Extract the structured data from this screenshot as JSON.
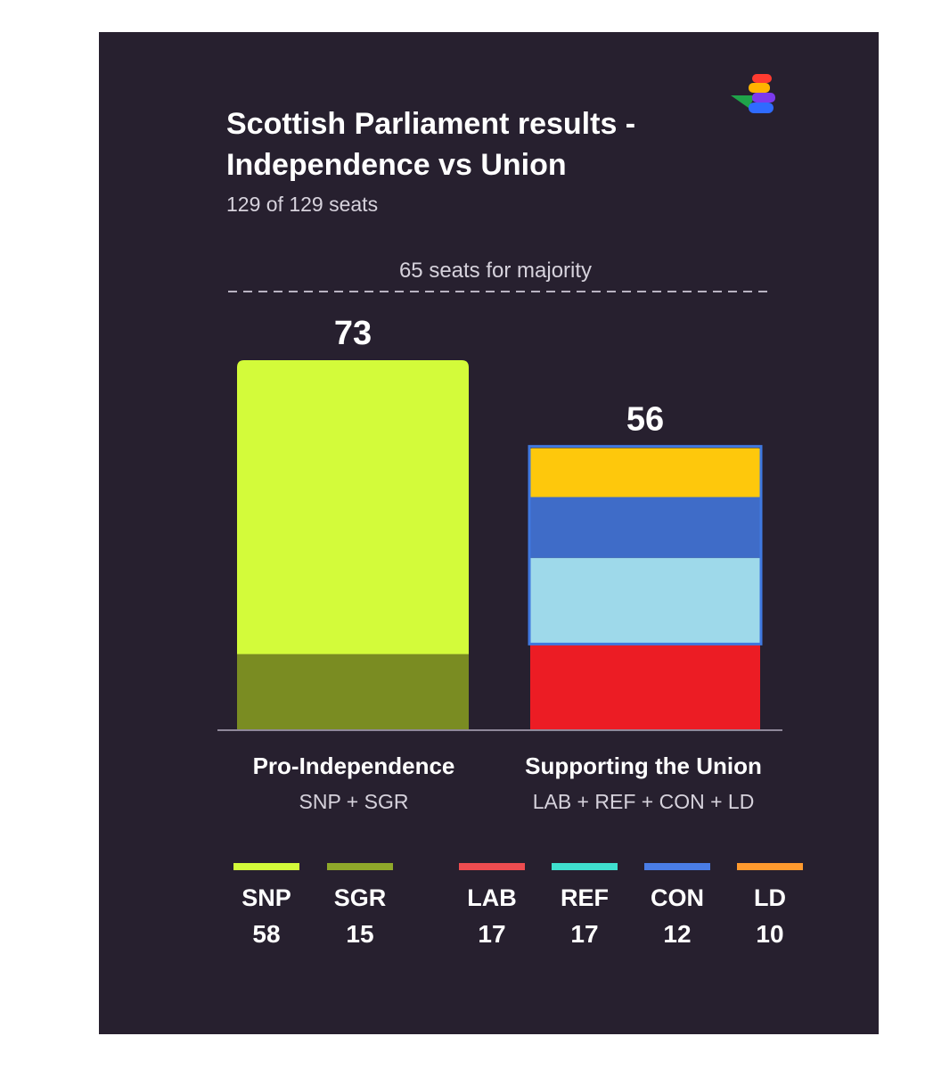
{
  "chart_data": {
    "type": "bar",
    "title": [
      "Scottish Parliament results -",
      "Independence vs Union"
    ],
    "subtitle": "129 of 129 seats",
    "ylim": [
      0,
      73
    ],
    "reference_line": {
      "value": 65,
      "label": "65 seats for majority"
    },
    "categories": [
      {
        "name": "Pro-Independence",
        "parties_label": "SNP + SGR",
        "total": 73,
        "segments": [
          {
            "party": "SGR",
            "value": 15,
            "color": "#7a8c22"
          },
          {
            "party": "SNP",
            "value": 58,
            "color": "#d3fb3a"
          }
        ]
      },
      {
        "name": "Supporting the Union",
        "parties_label": "LAB + REF + CON + LD",
        "total": 56,
        "segments": [
          {
            "party": "LAB",
            "value": 17,
            "color": "#ec1c24"
          },
          {
            "party": "REF",
            "value": 17,
            "color": "#9ed9ea"
          },
          {
            "party": "CON",
            "value": 12,
            "color": "#3f6cc8"
          },
          {
            "party": "LD",
            "value": 10,
            "color": "#fec80c"
          }
        ]
      }
    ],
    "legend": [
      {
        "party": "SNP",
        "value": 58,
        "color": "#d3fb3a"
      },
      {
        "party": "SGR",
        "value": 15,
        "color": "#8fa82a"
      },
      {
        "party": "LAB",
        "value": 17,
        "color": "#ee4c50"
      },
      {
        "party": "REF",
        "value": 17,
        "color": "#3fe0cf"
      },
      {
        "party": "CON",
        "value": 12,
        "color": "#4a7de6"
      },
      {
        "party": "LD",
        "value": 10,
        "color": "#ff9a2e"
      }
    ]
  },
  "colors": {
    "background": "#27202f",
    "text": "#ffffff",
    "muted": "#d6d2dc"
  },
  "logo_icon": "s-brand-logo-icon"
}
